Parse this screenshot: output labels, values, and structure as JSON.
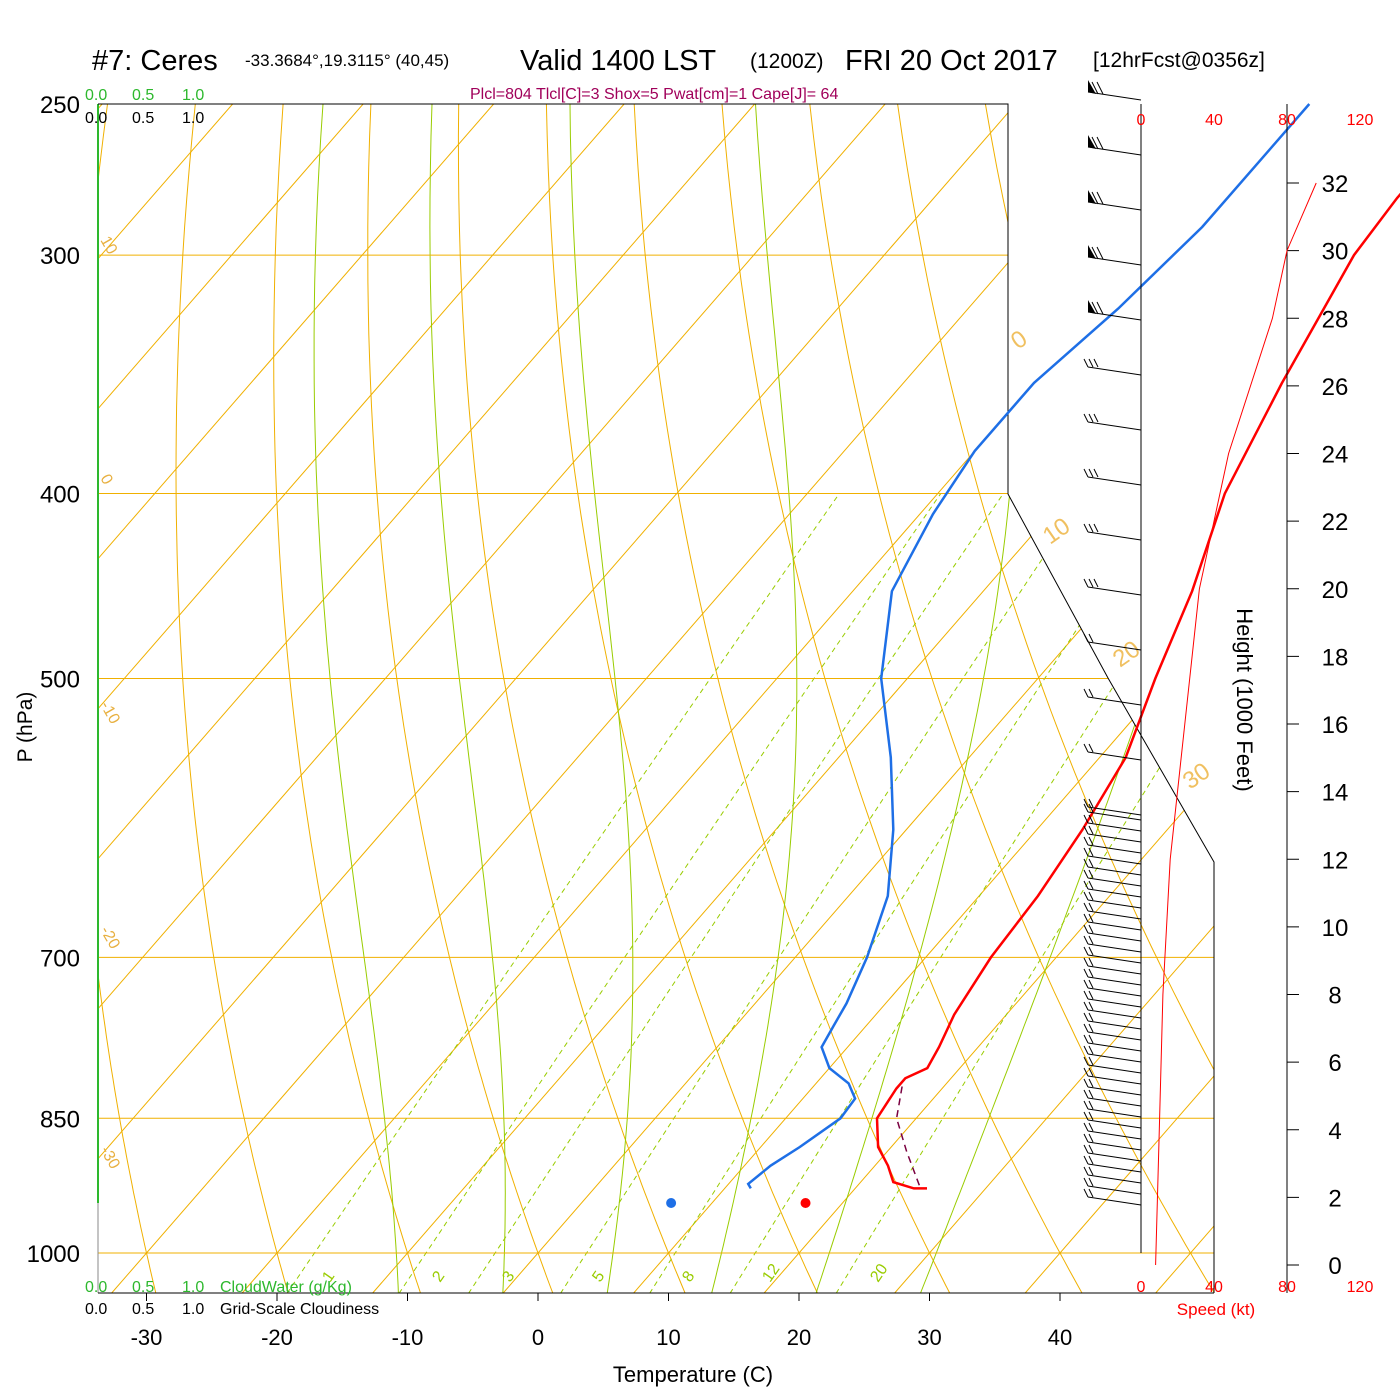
{
  "header": {
    "station": "#7: Ceres",
    "coords": "-33.3684°,19.3115° (40,45)",
    "valid": "Valid 1400 LST",
    "zulu": "(1200Z)",
    "date": "FRI 20 Oct 2017",
    "forecast": "[12hrFcst@0356z]",
    "indices": "Plcl=804 Tlcl[C]=3 Shox=5 Pwat[cm]=1 Cape[J]= 64"
  },
  "colors": {
    "temperature": "#ff0000",
    "dewpoint": "#1e6fe6",
    "isotherm": "#f0b000",
    "dry_adiabat": "#f0b000",
    "moist_adiabat": "#99cc00",
    "mixing_ratio": "#99cc00",
    "parcel": "#7a0040",
    "cloudwater": "#2db82d",
    "indices_text": "#a0005a",
    "wind_speed": "#ff0000"
  },
  "cloud_scale": {
    "top_green": [
      "0.0",
      "0.5",
      "1.0"
    ],
    "top_black": [
      "0.0",
      "0.5",
      "1.0"
    ],
    "bottom_green": [
      "0.0",
      "0.5",
      "1.0"
    ],
    "bottom_green_label": "CloudWater (g/Kg)",
    "bottom_black": [
      "0.0",
      "0.5",
      "1.0"
    ],
    "bottom_black_label": "Grid-Scale Cloudiness"
  },
  "speed_scale": {
    "ticks": [
      "0",
      "40",
      "80",
      "120"
    ],
    "label": "Speed (kt)"
  },
  "chart_data": {
    "type": "line",
    "xlabel": "Temperature (C)",
    "ylabel": "P (hPa)",
    "y2label": "Height (1000 Feet)",
    "x_ticks": [
      "-30",
      "-20",
      "-10",
      "0",
      "10",
      "20",
      "30",
      "40"
    ],
    "pressure_ticks": [
      "250",
      "300",
      "400",
      "500",
      "700",
      "850",
      "1000"
    ],
    "pressure_values": [
      250,
      300,
      400,
      500,
      700,
      850,
      1000
    ],
    "height_ticks": [
      "0",
      "2",
      "4",
      "6",
      "8",
      "10",
      "12",
      "14",
      "16",
      "18",
      "20",
      "22",
      "24",
      "26",
      "28",
      "30",
      "32"
    ],
    "dry_adiabat_labels": [
      "10",
      "0",
      "-10",
      "-20",
      "-30",
      "0",
      "10",
      "20",
      "30"
    ],
    "mixing_ratio_labels": [
      "1",
      "2",
      "3",
      "5",
      "8",
      "12",
      "20"
    ],
    "series": [
      {
        "name": "Temperature",
        "points": [
          [
            -4.5,
            250
          ],
          [
            -4.5,
            280
          ],
          [
            -4,
            300
          ],
          [
            -1,
            350
          ],
          [
            2,
            400
          ],
          [
            6,
            450
          ],
          [
            9,
            500
          ],
          [
            12,
            550
          ],
          [
            13.5,
            600
          ],
          [
            14.5,
            650
          ],
          [
            15,
            700
          ],
          [
            16,
            750
          ],
          [
            17,
            780
          ],
          [
            17.5,
            800
          ],
          [
            16.5,
            810
          ],
          [
            16.5,
            820
          ],
          [
            17,
            850
          ],
          [
            19,
            880
          ],
          [
            21,
            900
          ],
          [
            22.5,
            918
          ],
          [
            24.5,
            925
          ],
          [
            25.5,
            925
          ]
        ]
      },
      {
        "name": "Dewpoint",
        "points": [
          [
            -17.5,
            250
          ],
          [
            -17.5,
            290
          ],
          [
            -18.5,
            320
          ],
          [
            -20,
            350
          ],
          [
            -20,
            380
          ],
          [
            -19,
            410
          ],
          [
            -17,
            450
          ],
          [
            -12,
            500
          ],
          [
            -6,
            550
          ],
          [
            -1,
            600
          ],
          [
            3,
            650
          ],
          [
            5.5,
            700
          ],
          [
            7,
            740
          ],
          [
            7.5,
            760
          ],
          [
            8,
            780
          ],
          [
            10,
            800
          ],
          [
            12.5,
            815
          ],
          [
            14,
            830
          ],
          [
            14.2,
            850
          ],
          [
            13,
            880
          ],
          [
            12,
            900
          ],
          [
            11.5,
            920
          ],
          [
            12,
            925
          ]
        ]
      },
      {
        "name": "Parcel",
        "points": [
          [
            16.8,
            818
          ],
          [
            18.5,
            850
          ],
          [
            21.5,
            885
          ],
          [
            25,
            925
          ]
        ]
      }
    ],
    "surface_temperature": 20.5,
    "surface_dewpoint": 10.2,
    "wind_speed_profile_kt": [
      [
        0,
        2
      ],
      [
        4,
        2.5
      ],
      [
        8,
        3
      ],
      [
        12,
        4
      ],
      [
        16,
        6
      ],
      [
        20,
        8
      ],
      [
        24,
        12
      ],
      [
        28,
        18
      ],
      [
        30,
        20
      ],
      [
        32,
        24
      ]
    ]
  }
}
